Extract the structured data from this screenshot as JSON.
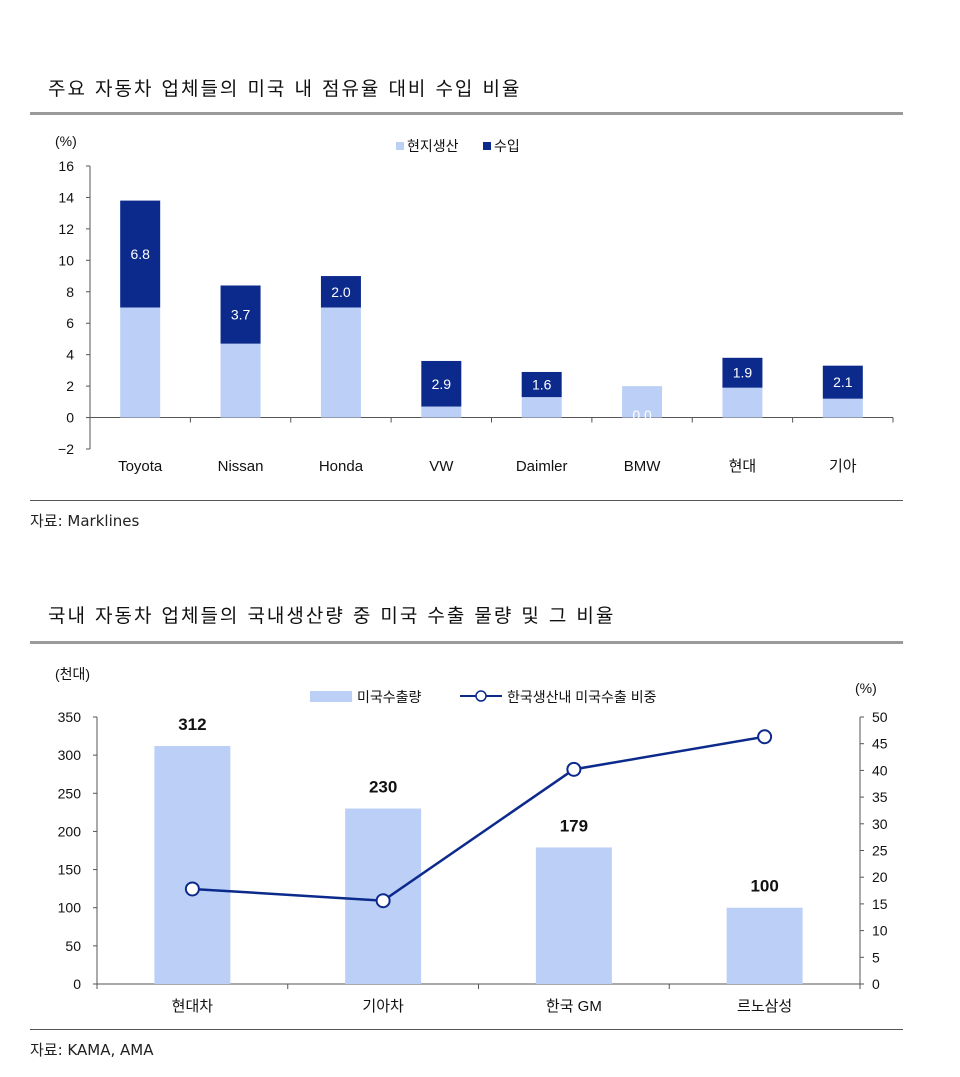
{
  "chart1": {
    "title": "주요 자동차 업체들의 미국 내 점유율 대비 수입 비율",
    "unit": "(%)",
    "source": "자료: Marklines",
    "legend": [
      {
        "label": "현지생산",
        "color": "#bcd0f7"
      },
      {
        "label": "수입",
        "color": "#0b2a8c"
      }
    ]
  },
  "chart2": {
    "title": "국내 자동차 업체들의 국내생산량 중 미국 수출 물량 및 그 비율",
    "unit_left": "(천대)",
    "unit_right": "(%)",
    "source": "자료: KAMA, AMA",
    "legend": [
      {
        "label": "미국수출량",
        "color": "#bcd0f7"
      },
      {
        "label": "한국생산내 미국수출 비중",
        "color": "#0b2a8c"
      }
    ]
  },
  "chart_data": [
    {
      "type": "bar",
      "stacked": true,
      "title": "주요 자동차 업체들의 미국 내 점유율 대비 수입 비율",
      "ylabel": "(%)",
      "ylim": [
        -2,
        16
      ],
      "yticks": [
        -2,
        0,
        2,
        4,
        6,
        8,
        10,
        12,
        14,
        16
      ],
      "categories": [
        "Toyota",
        "Nissan",
        "Honda",
        "VW",
        "Daimler",
        "BMW",
        "현대",
        "기아"
      ],
      "series": [
        {
          "name": "현지생산",
          "values": [
            7.0,
            4.7,
            7.0,
            0.7,
            1.3,
            2.0,
            1.9,
            1.2
          ]
        },
        {
          "name": "수입",
          "values": [
            6.8,
            3.7,
            2.0,
            2.9,
            1.6,
            0.0,
            1.9,
            2.1
          ]
        }
      ],
      "data_labels": [
        "6.8",
        "3.7",
        "2.0",
        "2.9",
        "1.6",
        "0.0",
        "1.9",
        "2.1"
      ],
      "legend_position": "top-right",
      "grid": false
    },
    {
      "type": "bar",
      "title": "국내 자동차 업체들의 국내생산량 중 미국 수출 물량 및 그 비율",
      "ylabel": "(천대)",
      "y2label": "(%)",
      "ylim": [
        0,
        350
      ],
      "y2lim": [
        0,
        50
      ],
      "yticks": [
        0,
        50,
        100,
        150,
        200,
        250,
        300,
        350
      ],
      "y2ticks": [
        0,
        5,
        10,
        15,
        20,
        25,
        30,
        35,
        40,
        45,
        50
      ],
      "categories": [
        "현대차",
        "기아차",
        "한국 GM",
        "르노삼성"
      ],
      "series": [
        {
          "name": "미국수출량",
          "type": "bar",
          "axis": "left",
          "values": [
            312,
            230,
            179,
            100
          ]
        },
        {
          "name": "한국생산내 미국수출 비중",
          "type": "line",
          "axis": "right",
          "values": [
            17.8,
            15.6,
            40.2,
            46.3
          ]
        }
      ],
      "data_labels": [
        "312",
        "230",
        "179",
        "100"
      ],
      "legend_position": "top-center",
      "grid": false
    }
  ]
}
